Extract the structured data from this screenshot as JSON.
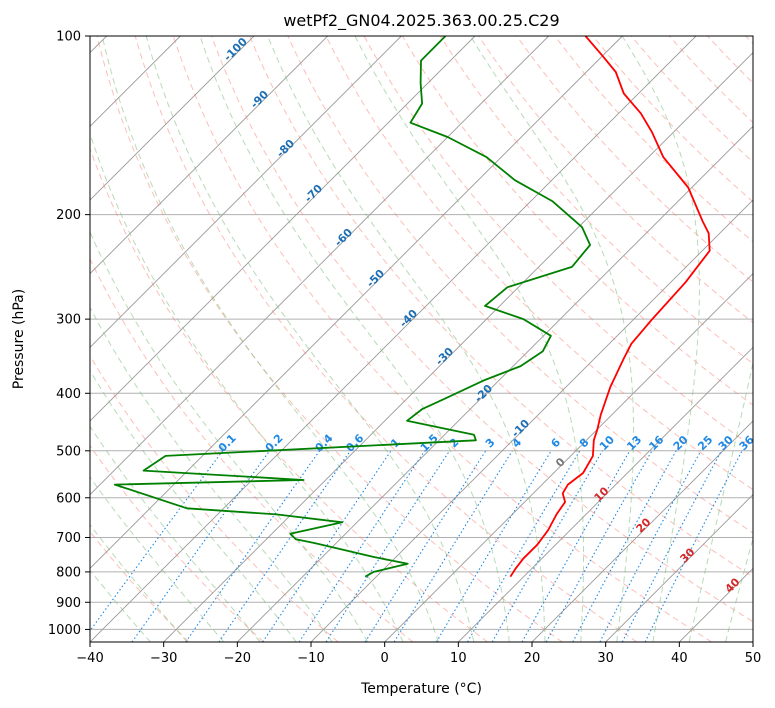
{
  "chart_data": {
    "type": "line",
    "subtype": "skew-t log-p",
    "title": "wetPf2_GN04.2025.363.00.25.C29",
    "xlabel": "Temperature (°C)",
    "ylabel": "Pressure (hPa)",
    "xlim": [
      -40,
      50
    ],
    "ylim": [
      1050,
      100
    ],
    "y_scale": "log",
    "skew_degrees": 45,
    "grid": true,
    "x_ticks": [
      -40,
      -30,
      -20,
      -10,
      0,
      10,
      20,
      30,
      40,
      50
    ],
    "y_ticks": [
      100,
      200,
      300,
      400,
      500,
      600,
      700,
      800,
      900,
      1000
    ],
    "series": [
      {
        "color": "#ff0000",
        "points": [
          [
            8.2,
            815
          ],
          [
            7.8,
            790
          ],
          [
            7.5,
            760
          ],
          [
            7.5,
            720
          ],
          [
            7.0,
            680
          ],
          [
            6.0,
            640
          ],
          [
            5.5,
            610
          ],
          [
            4.0,
            590
          ],
          [
            3.5,
            570
          ],
          [
            4.0,
            545
          ],
          [
            3.0,
            510
          ],
          [
            1.0,
            480
          ],
          [
            0.0,
            460
          ],
          [
            -1.5,
            435
          ],
          [
            -4.0,
            390
          ],
          [
            -6.0,
            350
          ],
          [
            -7.0,
            330
          ],
          [
            -7.5,
            300
          ],
          [
            -8.0,
            260
          ],
          [
            -9.0,
            230
          ],
          [
            -11.5,
            215
          ],
          [
            -14.0,
            205
          ],
          [
            -16.5,
            195
          ],
          [
            -20.5,
            180
          ],
          [
            -28.0,
            160
          ],
          [
            -33.0,
            145
          ],
          [
            -37.0,
            135
          ],
          [
            -42.0,
            125
          ],
          [
            -46.0,
            115
          ],
          [
            -50.0,
            108
          ],
          [
            -55.0,
            100
          ]
        ]
      },
      {
        "color": "#008000",
        "points": [
          [
            -11.5,
            815
          ],
          [
            -11.0,
            800
          ],
          [
            -7.5,
            775
          ],
          [
            -13.0,
            755
          ],
          [
            -23.0,
            715
          ],
          [
            -26.0,
            705
          ],
          [
            -27.5,
            690
          ],
          [
            -22.0,
            660
          ],
          [
            -32.0,
            640
          ],
          [
            -45.0,
            625
          ],
          [
            -58.0,
            570
          ],
          [
            -33.0,
            560
          ],
          [
            -56.0,
            540
          ],
          [
            -55.0,
            510
          ],
          [
            -15.0,
            480
          ],
          [
            -16.0,
            470
          ],
          [
            -27.0,
            445
          ],
          [
            -26.5,
            425
          ],
          [
            -25.0,
            410
          ],
          [
            -22.0,
            380
          ],
          [
            -19.0,
            360
          ],
          [
            -18.0,
            340
          ],
          [
            -19.0,
            320
          ],
          [
            -25.0,
            300
          ],
          [
            -32.0,
            285
          ],
          [
            -31.5,
            265
          ],
          [
            -25.5,
            245
          ],
          [
            -26.0,
            225
          ],
          [
            -29.5,
            210
          ],
          [
            -37.0,
            190
          ],
          [
            -45.0,
            175
          ],
          [
            -52.0,
            160
          ],
          [
            -60.0,
            148
          ],
          [
            -67.0,
            140
          ],
          [
            -68.0,
            130
          ],
          [
            -71.0,
            120
          ],
          [
            -74.0,
            110
          ],
          [
            -74.0,
            100
          ]
        ]
      }
    ],
    "dry_adiabat_labels": [
      "-100",
      "-90",
      "-80",
      "-70",
      "-60",
      "-50",
      "-40",
      "-30",
      "-20",
      "-10"
    ],
    "mixing_ratio_labels": [
      "0.1",
      "0.2",
      "0.4",
      "0.6",
      "1",
      "1.5",
      "2",
      "3",
      "4",
      "6",
      "8",
      "10",
      "13",
      "16",
      "20",
      "25",
      "30",
      "36"
    ],
    "moist_adiabat_labels": [
      "0",
      "10",
      "20",
      "30",
      "40"
    ],
    "colors": {
      "dry_adiabat": "#fa8072",
      "moist_adiabat": "#7cbb7c",
      "mixing_ratio": "#1e88e5",
      "isotherm": "#999999",
      "dry_adiabat_label": "#1f6fb4",
      "mixing_label": "#1e88e5",
      "moist_label": "#d62728",
      "freezing_label": "#777777"
    }
  }
}
